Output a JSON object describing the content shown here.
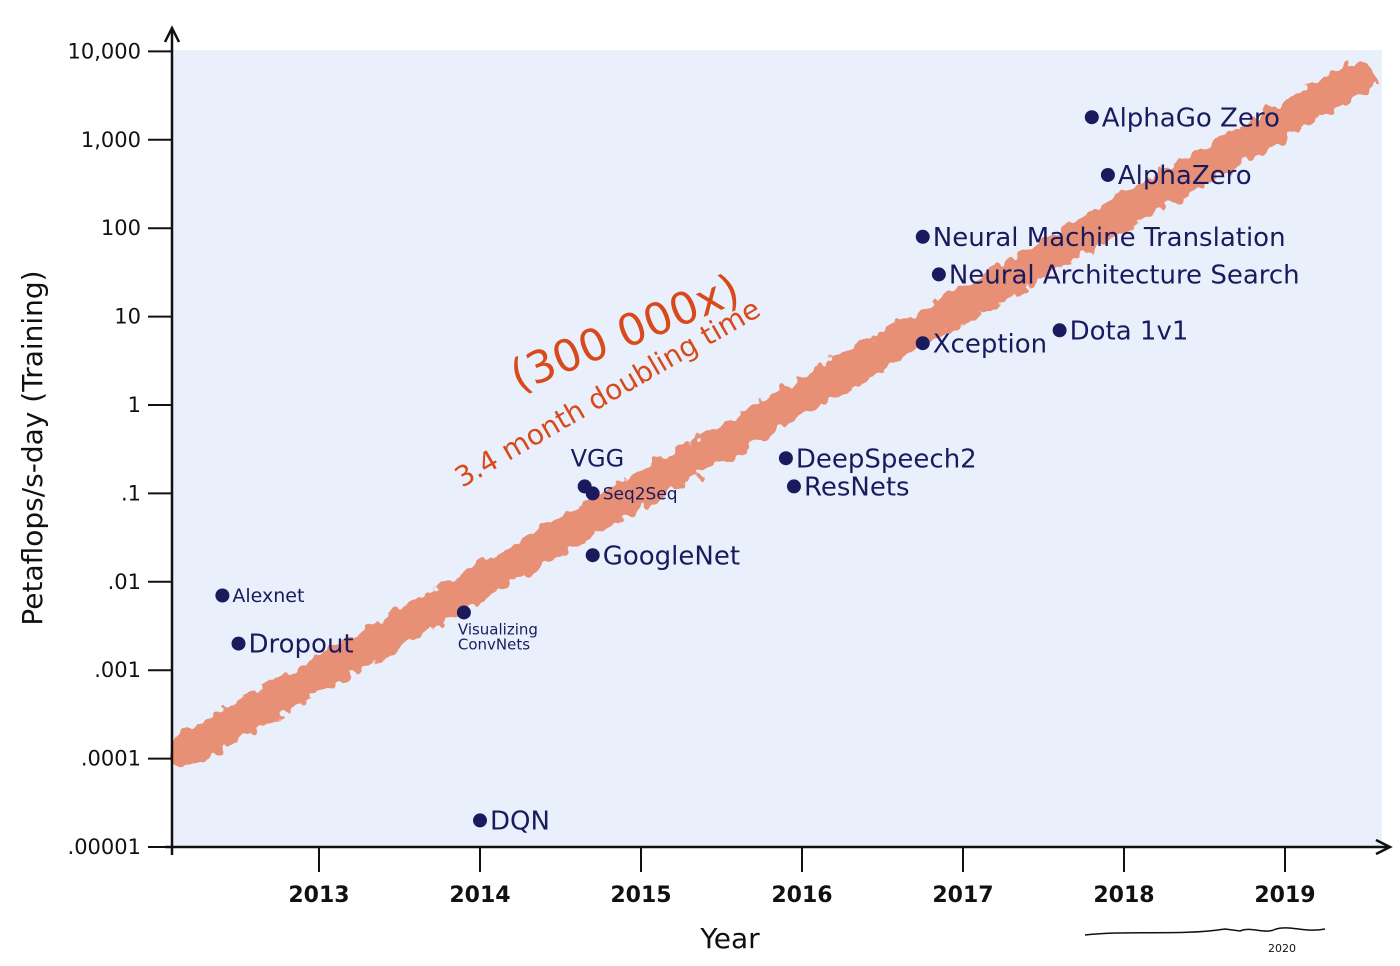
{
  "chart_data": {
    "type": "scatter",
    "title": "",
    "xlabel": "Year",
    "ylabel": "Petaflops/s-day (Training)",
    "yscale": "log",
    "ylim": [
      1e-05,
      10000
    ],
    "xlim": [
      2012.1,
      2019.65
    ],
    "grid": false,
    "x_ticks": [
      "2013",
      "2014",
      "2015",
      "2016",
      "2017",
      "2018",
      "2019"
    ],
    "y_ticks": [
      ".00001",
      ".0001",
      ".001",
      ".01",
      ".1",
      "1",
      "10",
      "100",
      "1,000",
      "10,000"
    ],
    "points": [
      {
        "label": "Alexnet",
        "x": 2012.4,
        "y": 0.007
      },
      {
        "label": "Dropout",
        "x": 2012.5,
        "y": 0.002
      },
      {
        "label": "Visualizing ConvNets",
        "x": 2013.9,
        "y": 0.0045
      },
      {
        "label": "DQN",
        "x": 2014.0,
        "y": 2e-05
      },
      {
        "label": "VGG",
        "x": 2014.65,
        "y": 0.12
      },
      {
        "label": "Seq2Seq",
        "x": 2014.7,
        "y": 0.1
      },
      {
        "label": "GoogleNet",
        "x": 2014.7,
        "y": 0.02
      },
      {
        "label": "DeepSpeech2",
        "x": 2015.9,
        "y": 0.25
      },
      {
        "label": "ResNets",
        "x": 2015.95,
        "y": 0.12
      },
      {
        "label": "Neural Machine Translation",
        "x": 2016.75,
        "y": 80
      },
      {
        "label": "Neural Architecture Search",
        "x": 2016.85,
        "y": 30
      },
      {
        "label": "Xception",
        "x": 2016.75,
        "y": 5
      },
      {
        "label": "Dota 1v1",
        "x": 2017.6,
        "y": 7
      },
      {
        "label": "AlphaGo Zero",
        "x": 2017.8,
        "y": 1800
      },
      {
        "label": "AlphaZero",
        "x": 2017.9,
        "y": 400
      }
    ],
    "trend": {
      "x": [
        2012.1,
        2019.45
      ],
      "y": [
        0.00012,
        5000
      ],
      "color": "#e8805f"
    },
    "annotations": [
      "(300 000x)",
      "3.4 month doubling time"
    ],
    "signature_year": "2020",
    "colors": {
      "background": "#eaf0fb",
      "points": "#1a1a5e",
      "annotation": "#d84a1b",
      "trend": "#e8805f"
    }
  }
}
